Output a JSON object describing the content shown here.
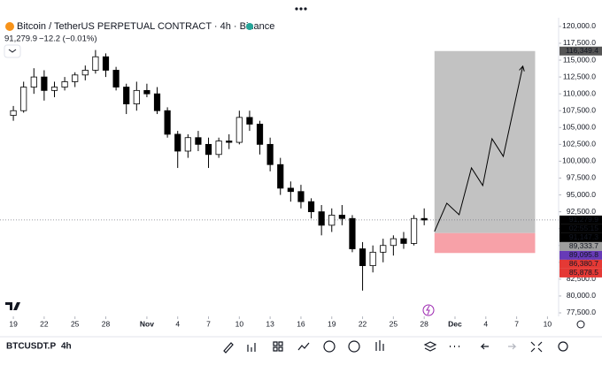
{
  "header": {
    "symbol_title": "Bitcoin / TetherUS PERPETUAL CONTRACT · 4h · Binance",
    "last_price": "91,279.9",
    "change": "−12.2 (−0.01%)"
  },
  "toolbar": {
    "symbol": "BTCUSDT.P",
    "interval": "4h"
  },
  "chart_data": {
    "type": "candlestick",
    "x": [
      0,
      1,
      2,
      3,
      4,
      5,
      6,
      7,
      8,
      9,
      10,
      11,
      12,
      13,
      14,
      15,
      16,
      17,
      18,
      19,
      20,
      21,
      22,
      23,
      24,
      25,
      26,
      27,
      28,
      29,
      30,
      31,
      32,
      33,
      34,
      35,
      36,
      37,
      38,
      39,
      40
    ],
    "open": [
      106800,
      107500,
      111000,
      112500,
      110500,
      111000,
      111800,
      112800,
      113500,
      115500,
      113500,
      111000,
      108500,
      110500,
      110000,
      107500,
      104000,
      101500,
      103500,
      102500,
      101000,
      103000,
      102800,
      106500,
      105500,
      102500,
      99500,
      96000,
      95500,
      94000,
      92500,
      90500,
      92000,
      91500,
      87000,
      84500,
      86500,
      87500,
      88500,
      87800,
      91500
    ],
    "high": [
      108200,
      111800,
      113800,
      113500,
      111800,
      112500,
      113200,
      114200,
      116500,
      116000,
      114000,
      111500,
      111800,
      111500,
      111000,
      108000,
      104500,
      104000,
      104500,
      103500,
      103500,
      104000,
      107500,
      107500,
      106000,
      103500,
      100500,
      97000,
      96500,
      94500,
      93500,
      93000,
      93500,
      92000,
      88000,
      87500,
      88500,
      89000,
      89500,
      92000,
      93000
    ],
    "low": [
      106000,
      107200,
      110000,
      109000,
      109500,
      110500,
      111000,
      112000,
      113000,
      112500,
      110500,
      107000,
      107500,
      109500,
      107000,
      103500,
      99000,
      100500,
      101500,
      99000,
      100500,
      101800,
      102500,
      104500,
      101000,
      98500,
      95000,
      94000,
      93000,
      91500,
      89000,
      89500,
      90500,
      86500,
      80800,
      83500,
      85000,
      86000,
      87000,
      87500,
      90500
    ],
    "close": [
      107500,
      111000,
      112500,
      110500,
      111000,
      111800,
      112800,
      113500,
      115500,
      113500,
      111000,
      108500,
      110500,
      110000,
      107500,
      104000,
      101500,
      103500,
      102500,
      101000,
      103000,
      102800,
      106500,
      105500,
      102500,
      99500,
      96000,
      95500,
      94000,
      92500,
      90500,
      92000,
      91500,
      87000,
      84500,
      86500,
      87500,
      88500,
      87800,
      91500,
      91280
    ],
    "up_color": "#ffffff",
    "down_color": "#000000",
    "last_price": 91279.9,
    "xlim": [
      -1.3,
      53
    ],
    "ylim": [
      75400,
      121300
    ],
    "xticks": [
      {
        "value": 0,
        "label": "19"
      },
      {
        "value": 3,
        "label": "22"
      },
      {
        "value": 6,
        "label": "25"
      },
      {
        "value": 9,
        "label": "28"
      },
      {
        "value": 13,
        "label": "Nov"
      },
      {
        "value": 16,
        "label": "4"
      },
      {
        "value": 19,
        "label": "7"
      },
      {
        "value": 22,
        "label": "10"
      },
      {
        "value": 25,
        "label": "13"
      },
      {
        "value": 28,
        "label": "16"
      },
      {
        "value": 31,
        "label": "19"
      },
      {
        "value": 34,
        "label": "22"
      },
      {
        "value": 37,
        "label": "25"
      },
      {
        "value": 40,
        "label": "28"
      },
      {
        "value": 43,
        "label": "Dec"
      },
      {
        "value": 46,
        "label": "4"
      },
      {
        "value": 49,
        "label": "7"
      },
      {
        "value": 52,
        "label": "10"
      }
    ],
    "yticks": [
      {
        "value": 77500,
        "label": "77,500.0"
      },
      {
        "value": 80000,
        "label": "80,000.0"
      },
      {
        "value": 82500,
        "label": "82,500.0"
      },
      {
        "value": 85000,
        "label": "85,000.0"
      },
      {
        "value": 87500,
        "label": "87,500.0"
      },
      {
        "value": 90000,
        "label": "90,000.0"
      },
      {
        "value": 92500,
        "label": "92,500.0"
      },
      {
        "value": 95000,
        "label": "95,000.0"
      },
      {
        "value": 97500,
        "label": "97,500.0"
      },
      {
        "value": 100000,
        "label": "100,000.0"
      },
      {
        "value": 102500,
        "label": "102,500.0"
      },
      {
        "value": 105000,
        "label": "105,000.0"
      },
      {
        "value": 107500,
        "label": "107,500.0"
      },
      {
        "value": 110000,
        "label": "110,000.0"
      },
      {
        "value": 112500,
        "label": "112,500.0"
      },
      {
        "value": 115000,
        "label": "115,000.0"
      },
      {
        "value": 117500,
        "label": "117,500.0"
      },
      {
        "value": 120000,
        "label": "120,000.0"
      }
    ],
    "position": {
      "x_start": 41.0,
      "x_end": 50.8,
      "entry": 89333.7,
      "target": 116349.4,
      "stop": 86380.7,
      "profit_color": "#c2c2c2",
      "loss_color": "#f7a1a8"
    },
    "projection": {
      "x": [
        41.0,
        42.2,
        43.4,
        44.6,
        45.7,
        46.6,
        47.7,
        49.6
      ],
      "y": [
        89570,
        93767,
        92062,
        99014,
        96390,
        103342,
        100719,
        114098
      ]
    },
    "price_tags": [
      {
        "text": "91,279.9",
        "color": "#000000"
      },
      {
        "text": "02:55:15",
        "color": "#000000"
      },
      {
        "text": "91,147.3",
        "color": "#000000"
      },
      {
        "text": "89,333.7",
        "color": "#9e9e9e"
      },
      {
        "text": "89,095.8",
        "color": "#673ab7"
      },
      {
        "text": "86,380.7",
        "color": "#e53935"
      },
      {
        "text": "85,878.5",
        "color": "#e53935"
      }
    ],
    "target_tag": {
      "text": "116,349.4",
      "color": "#555555"
    }
  }
}
